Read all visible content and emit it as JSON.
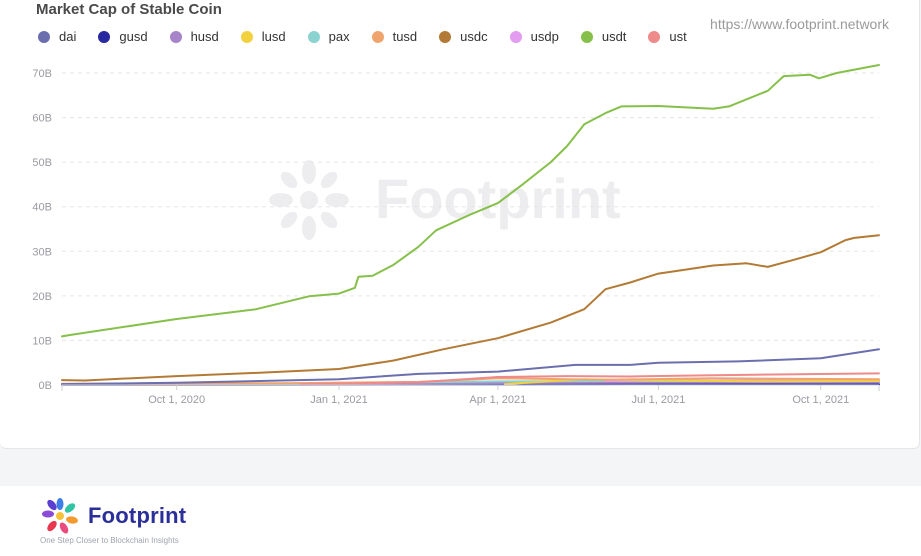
{
  "chart_data": {
    "type": "line",
    "title": "Market Cap of Stable Coin",
    "source": "https://www.footprint.network",
    "watermark": "Footprint",
    "x_ticks": [
      "Oct 1, 2020",
      "Jan 1, 2021",
      "Apr 1, 2021",
      "Jul 1, 2021",
      "Oct 1, 2021"
    ],
    "y_ticks": [
      "0B",
      "10B",
      "20B",
      "30B",
      "40B",
      "50B",
      "60B",
      "70B"
    ],
    "xlim": [
      "2020-07-28",
      "2021-11-03"
    ],
    "ylim": [
      0,
      70
    ],
    "y_unit": "B",
    "grid": true,
    "legend_position": "top",
    "series": [
      {
        "name": "dai",
        "color": "#6b6fae",
        "points": [
          [
            "2020-07-28",
            0.2
          ],
          [
            "2020-10-01",
            0.5
          ],
          [
            "2021-01-01",
            1.3
          ],
          [
            "2021-02-15",
            2.5
          ],
          [
            "2021-04-01",
            3.0
          ],
          [
            "2021-05-15",
            4.5
          ],
          [
            "2021-06-15",
            4.5
          ],
          [
            "2021-07-01",
            5.0
          ],
          [
            "2021-08-15",
            5.3
          ],
          [
            "2021-10-01",
            6.0
          ],
          [
            "2021-11-03",
            8.0
          ]
        ]
      },
      {
        "name": "gusd",
        "color": "#2828a0",
        "points": [
          [
            "2020-07-28",
            0.05
          ],
          [
            "2021-04-01",
            0.1
          ],
          [
            "2021-11-03",
            0.15
          ]
        ]
      },
      {
        "name": "husd",
        "color": "#a684c8",
        "points": [
          [
            "2020-07-28",
            0.1
          ],
          [
            "2021-01-01",
            0.3
          ],
          [
            "2021-05-01",
            0.5
          ],
          [
            "2021-11-03",
            0.6
          ]
        ]
      },
      {
        "name": "lusd",
        "color": "#f2d13f",
        "points": [
          [
            "2021-04-05",
            0.2
          ],
          [
            "2021-05-20",
            1.3
          ],
          [
            "2021-07-01",
            1.0
          ],
          [
            "2021-09-01",
            0.8
          ],
          [
            "2021-11-03",
            0.9
          ]
        ]
      },
      {
        "name": "pax",
        "color": "#8bd3d1",
        "points": [
          [
            "2020-07-28",
            0.2
          ],
          [
            "2021-01-01",
            0.4
          ],
          [
            "2021-04-01",
            0.8
          ],
          [
            "2021-06-01",
            0.9
          ],
          [
            "2021-11-03",
            0.9
          ]
        ]
      },
      {
        "name": "tusd",
        "color": "#f0a46d",
        "points": [
          [
            "2020-07-28",
            0.3
          ],
          [
            "2020-12-01",
            0.4
          ],
          [
            "2021-02-15",
            0.7
          ],
          [
            "2021-04-01",
            1.5
          ],
          [
            "2021-06-01",
            1.2
          ],
          [
            "2021-08-01",
            1.5
          ],
          [
            "2021-11-03",
            1.3
          ]
        ]
      },
      {
        "name": "usdc",
        "color": "#b27a34",
        "points": [
          [
            "2020-07-28",
            1.1
          ],
          [
            "2020-08-10",
            1.0
          ],
          [
            "2020-10-01",
            2.0
          ],
          [
            "2020-11-20",
            2.8
          ],
          [
            "2021-01-01",
            3.6
          ],
          [
            "2021-02-01",
            5.5
          ],
          [
            "2021-03-01",
            8.0
          ],
          [
            "2021-04-01",
            10.5
          ],
          [
            "2021-05-01",
            14.0
          ],
          [
            "2021-05-20",
            17.0
          ],
          [
            "2021-06-01",
            21.5
          ],
          [
            "2021-06-15",
            23.0
          ],
          [
            "2021-07-01",
            25.0
          ],
          [
            "2021-07-15",
            25.8
          ],
          [
            "2021-08-01",
            26.8
          ],
          [
            "2021-08-20",
            27.3
          ],
          [
            "2021-09-01",
            26.5
          ],
          [
            "2021-09-15",
            28.0
          ],
          [
            "2021-10-01",
            29.8
          ],
          [
            "2021-10-15",
            32.5
          ],
          [
            "2021-10-20",
            33.0
          ],
          [
            "2021-11-03",
            33.6
          ]
        ]
      },
      {
        "name": "usdp",
        "color": "#e39cf0",
        "points": [
          [
            "2021-06-01",
            0.9
          ],
          [
            "2021-07-01",
            1.0
          ],
          [
            "2021-09-01",
            1.0
          ],
          [
            "2021-11-03",
            1.0
          ]
        ]
      },
      {
        "name": "usdt",
        "color": "#86c04a",
        "points": [
          [
            "2020-07-28",
            10.9
          ],
          [
            "2020-08-01",
            11.2
          ],
          [
            "2020-10-01",
            14.8
          ],
          [
            "2020-11-15",
            17.0
          ],
          [
            "2020-12-15",
            19.9
          ],
          [
            "2021-01-01",
            20.5
          ],
          [
            "2021-01-10",
            21.8
          ],
          [
            "2021-01-12",
            24.3
          ],
          [
            "2021-01-20",
            24.5
          ],
          [
            "2021-02-01",
            27.0
          ],
          [
            "2021-02-15",
            31.0
          ],
          [
            "2021-02-25",
            34.7
          ],
          [
            "2021-03-15",
            38.0
          ],
          [
            "2021-04-01",
            40.8
          ],
          [
            "2021-04-15",
            45.0
          ],
          [
            "2021-05-01",
            50.0
          ],
          [
            "2021-05-10",
            53.5
          ],
          [
            "2021-05-20",
            58.5
          ],
          [
            "2021-06-01",
            61.0
          ],
          [
            "2021-06-10",
            62.5
          ],
          [
            "2021-07-01",
            62.6
          ],
          [
            "2021-08-01",
            62.0
          ],
          [
            "2021-08-10",
            62.5
          ],
          [
            "2021-09-01",
            66.0
          ],
          [
            "2021-09-10",
            69.3
          ],
          [
            "2021-09-25",
            69.6
          ],
          [
            "2021-09-30",
            68.8
          ],
          [
            "2021-10-10",
            70.0
          ],
          [
            "2021-11-03",
            71.8
          ]
        ]
      },
      {
        "name": "ust",
        "color": "#ee8a8a",
        "points": [
          [
            "2020-12-10",
            0.15
          ],
          [
            "2021-02-15",
            0.6
          ],
          [
            "2021-04-01",
            1.8
          ],
          [
            "2021-05-10",
            2.0
          ],
          [
            "2021-06-15",
            1.9
          ],
          [
            "2021-08-01",
            2.2
          ],
          [
            "2021-11-03",
            2.6
          ]
        ]
      }
    ]
  },
  "footer": {
    "brand": "Footprint",
    "tagline": "One Step Closer to Blockchain Insights"
  }
}
